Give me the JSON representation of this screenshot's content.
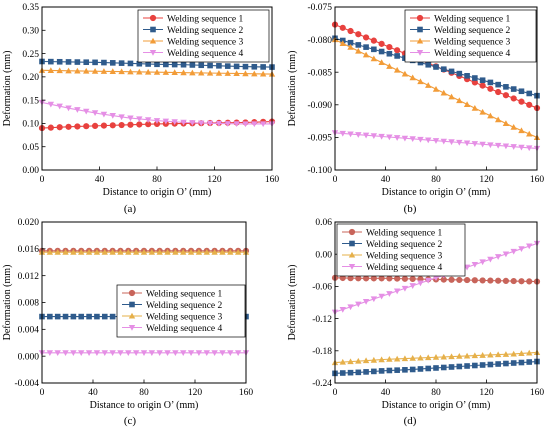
{
  "chart_data": [
    {
      "type": "line",
      "panel_label": "(a)",
      "xlabel": "Distance to origin O’ (mm)",
      "ylabel": "Deformation (mm)",
      "xlim": [
        0,
        160
      ],
      "ylim": [
        0,
        0.35
      ],
      "xticks": [
        0,
        40,
        80,
        120,
        160
      ],
      "xtick_labels": [
        "0",
        "40",
        "80",
        "120",
        "160"
      ],
      "yticks": [
        0,
        0.05,
        0.1,
        0.15,
        0.2,
        0.25,
        0.3,
        0.35
      ],
      "ytick_labels": [
        "0.00",
        "0.05",
        "0.10",
        "0.15",
        "0.20",
        "0.25",
        "0.30",
        "0.35"
      ],
      "legend_position": "top-right",
      "grid": false,
      "series": [
        {
          "name": "Welding sequence 1",
          "color": "#e8413e",
          "marker": "circle",
          "x": [
            0,
            20,
            40,
            60,
            80,
            100,
            120,
            140,
            160
          ],
          "y": [
            0.09,
            0.093,
            0.095,
            0.097,
            0.099,
            0.1,
            0.101,
            0.102,
            0.104
          ]
        },
        {
          "name": "Welding sequence 2",
          "color": "#2f5b8c",
          "marker": "square",
          "x": [
            0,
            20,
            40,
            60,
            80,
            100,
            120,
            140,
            160
          ],
          "y": [
            0.233,
            0.232,
            0.231,
            0.229,
            0.227,
            0.226,
            0.224,
            0.222,
            0.221
          ]
        },
        {
          "name": "Welding sequence 3",
          "color": "#f29c38",
          "marker": "triangle-up",
          "x": [
            0,
            20,
            40,
            60,
            80,
            100,
            120,
            140,
            160
          ],
          "y": [
            0.214,
            0.213,
            0.212,
            0.211,
            0.21,
            0.209,
            0.208,
            0.207,
            0.206
          ]
        },
        {
          "name": "Welding sequence 4",
          "color": "#e58fe5",
          "marker": "triangle-down",
          "x": [
            0,
            20,
            40,
            60,
            80,
            100,
            120,
            140,
            160
          ],
          "y": [
            0.145,
            0.132,
            0.121,
            0.112,
            0.106,
            0.102,
            0.1,
            0.099,
            0.099
          ]
        }
      ]
    },
    {
      "type": "line",
      "panel_label": "(b)",
      "xlabel": "Distance to origin O’ (mm)",
      "ylabel": "Deformation (mm)",
      "xlim": [
        0,
        160
      ],
      "ylim": [
        -0.1,
        -0.075
      ],
      "xticks": [
        0,
        40,
        80,
        120,
        160
      ],
      "xtick_labels": [
        "0",
        "40",
        "80",
        "120",
        "160"
      ],
      "yticks": [
        -0.1,
        -0.095,
        -0.09,
        -0.085,
        -0.08,
        -0.075
      ],
      "ytick_labels": [
        "-0.100",
        "-0.095",
        "-0.090",
        "-0.085",
        "-0.080",
        "-0.075"
      ],
      "legend_position": "top-right",
      "grid": false,
      "series": [
        {
          "name": "Welding sequence 1",
          "color": "#e8413e",
          "marker": "circle",
          "x": [
            0,
            20,
            40,
            60,
            80,
            100,
            120,
            140,
            160
          ],
          "y": [
            -0.0777,
            -0.0793,
            -0.0809,
            -0.0825,
            -0.0841,
            -0.0857,
            -0.0873,
            -0.0889,
            -0.0905
          ]
        },
        {
          "name": "Welding sequence 2",
          "color": "#2f5b8c",
          "marker": "square",
          "x": [
            0,
            20,
            40,
            60,
            80,
            100,
            120,
            140,
            160
          ],
          "y": [
            -0.0798,
            -0.0809,
            -0.082,
            -0.0831,
            -0.0842,
            -0.0853,
            -0.0864,
            -0.0875,
            -0.0886
          ]
        },
        {
          "name": "Welding sequence 3",
          "color": "#f29c38",
          "marker": "triangle-up",
          "x": [
            0,
            20,
            40,
            60,
            80,
            100,
            120,
            140,
            160
          ],
          "y": [
            -0.08,
            -0.0819,
            -0.0838,
            -0.0857,
            -0.0876,
            -0.0895,
            -0.0914,
            -0.0933,
            -0.095
          ]
        },
        {
          "name": "Welding sequence 4",
          "color": "#e58fe5",
          "marker": "triangle-down",
          "x": [
            0,
            20,
            40,
            60,
            80,
            100,
            120,
            140,
            160
          ],
          "y": [
            -0.0943,
            -0.0946,
            -0.0949,
            -0.0952,
            -0.0955,
            -0.0958,
            -0.0961,
            -0.0964,
            -0.0967
          ]
        }
      ]
    },
    {
      "type": "line",
      "panel_label": "(c)",
      "xlabel": "Distance to origin O’ (mm)",
      "ylabel": "Deformation (mm)",
      "xlim": [
        0,
        160
      ],
      "ylim": [
        -0.004,
        0.02
      ],
      "xticks": [
        0,
        40,
        80,
        120,
        160
      ],
      "xtick_labels": [
        "0",
        "40",
        "80",
        "120",
        "160"
      ],
      "yticks": [
        -0.004,
        0.0,
        0.004,
        0.008,
        0.012,
        0.016,
        0.02
      ],
      "ytick_labels": [
        "-0.004",
        "0.000",
        "0.004",
        "0.008",
        "0.012",
        "0.016",
        "0.020"
      ],
      "legend_position": "center-right",
      "grid": false,
      "series": [
        {
          "name": "Welding sequence 1",
          "color": "#c8645a",
          "marker": "circle",
          "x": [
            0,
            20,
            40,
            60,
            80,
            100,
            120,
            140,
            160
          ],
          "y": [
            0.0157,
            0.0157,
            0.0157,
            0.0157,
            0.0157,
            0.0157,
            0.0157,
            0.0157,
            0.0157
          ]
        },
        {
          "name": "Welding sequence 2",
          "color": "#2f5b8c",
          "marker": "square",
          "x": [
            0,
            20,
            40,
            60,
            80,
            100,
            120,
            140,
            160
          ],
          "y": [
            0.0059,
            0.0059,
            0.0059,
            0.0059,
            0.0059,
            0.0059,
            0.0059,
            0.0059,
            0.0059
          ]
        },
        {
          "name": "Welding sequence 3",
          "color": "#e6b04a",
          "marker": "triangle-up",
          "x": [
            0,
            20,
            40,
            60,
            80,
            100,
            120,
            140,
            160
          ],
          "y": [
            0.0155,
            0.0155,
            0.0155,
            0.0155,
            0.0155,
            0.0155,
            0.0155,
            0.0155,
            0.0155
          ]
        },
        {
          "name": "Welding sequence 4",
          "color": "#e58fe5",
          "marker": "triangle-down",
          "x": [
            0,
            20,
            40,
            60,
            80,
            100,
            120,
            140,
            160
          ],
          "y": [
            0.0005,
            0.0005,
            0.0005,
            0.0005,
            0.0005,
            0.0005,
            0.0005,
            0.0005,
            0.0005
          ]
        }
      ]
    },
    {
      "type": "line",
      "panel_label": "(d)",
      "xlabel": "Distance to origin O’ (mm)",
      "ylabel": "Deformation (mm)",
      "xlim": [
        0,
        160
      ],
      "ylim": [
        -0.24,
        0.06
      ],
      "xticks": [
        0,
        40,
        80,
        120,
        160
      ],
      "xtick_labels": [
        "0",
        "40",
        "80",
        "120",
        "160"
      ],
      "yticks": [
        -0.24,
        -0.18,
        -0.12,
        -0.06,
        0.0,
        0.06
      ],
      "ytick_labels": [
        "-0.24",
        "-0.18",
        "-0.12",
        "-0.06",
        "0.00",
        "0.06"
      ],
      "legend_position": "top-left",
      "grid": false,
      "series": [
        {
          "name": "Welding sequence 1",
          "color": "#c8645a",
          "marker": "circle",
          "x": [
            0,
            20,
            40,
            60,
            80,
            100,
            120,
            140,
            160
          ],
          "y": [
            -0.044,
            -0.045,
            -0.045,
            -0.046,
            -0.047,
            -0.048,
            -0.049,
            -0.05,
            -0.051
          ]
        },
        {
          "name": "Welding sequence 2",
          "color": "#2f5b8c",
          "marker": "square",
          "x": [
            0,
            20,
            40,
            60,
            80,
            100,
            120,
            140,
            160
          ],
          "y": [
            -0.222,
            -0.22,
            -0.217,
            -0.215,
            -0.212,
            -0.209,
            -0.206,
            -0.203,
            -0.2
          ]
        },
        {
          "name": "Welding sequence 3",
          "color": "#e6b04a",
          "marker": "triangle-up",
          "x": [
            0,
            20,
            40,
            60,
            80,
            100,
            120,
            140,
            160
          ],
          "y": [
            -0.202,
            -0.199,
            -0.196,
            -0.194,
            -0.192,
            -0.19,
            -0.188,
            -0.186,
            -0.183
          ]
        },
        {
          "name": "Welding sequence 4",
          "color": "#e58fe5",
          "marker": "triangle-down",
          "x": [
            0,
            20,
            40,
            60,
            80,
            100,
            120,
            140,
            160
          ],
          "y": [
            -0.108,
            -0.092,
            -0.076,
            -0.06,
            -0.044,
            -0.028,
            -0.012,
            0.004,
            0.02
          ]
        }
      ]
    }
  ]
}
